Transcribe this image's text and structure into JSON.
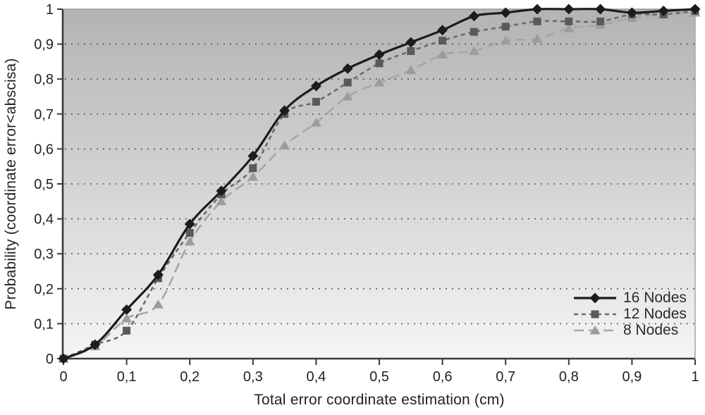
{
  "chart_data": {
    "type": "line",
    "title": "",
    "xlabel": "Total error coordinate estimation (cm)",
    "ylabel": "Probability (coordinate error<abscisa)",
    "xlim": [
      0,
      1
    ],
    "ylim": [
      0,
      1
    ],
    "grid": "horizontal dotted gridlines every 0.1",
    "legend_position": "inside bottom-right",
    "plot_bg_gradient": [
      "#b3b3b3",
      "#f5f5f5"
    ],
    "axis_color": "#3a3a3a",
    "border_color": "#9a9a9a",
    "grid_color": "#4a4a4a",
    "text_color": "#222222",
    "x_ticks": [
      0,
      0.1,
      0.2,
      0.3,
      0.4,
      0.5,
      0.6,
      0.7,
      0.8,
      0.9,
      1
    ],
    "x_tick_labels": [
      "0",
      "0,1",
      "0,2",
      "0,3",
      "0,4",
      "0,5",
      "0,6",
      "0,7",
      "0,8",
      "0,9",
      "1"
    ],
    "y_ticks": [
      1,
      0.9,
      0.8,
      0.7,
      0.6,
      0.5,
      0.4,
      0.3,
      0.2,
      0.1,
      0
    ],
    "y_tick_labels": [
      "1",
      "0,9",
      "0,8",
      "0,7",
      "0,6",
      "0,5",
      "0,4",
      "0,3",
      "0,2",
      "0,1",
      "0"
    ],
    "x": [
      0,
      0.05,
      0.1,
      0.15,
      0.2,
      0.25,
      0.3,
      0.35,
      0.4,
      0.45,
      0.5,
      0.55,
      0.6,
      0.65,
      0.7,
      0.75,
      0.8,
      0.85,
      0.9,
      0.95,
      1.0
    ],
    "series": [
      {
        "name": "16 Nodes",
        "marker": "diamond",
        "line_style": "solid",
        "color": "#1c1c1c",
        "marker_color": "#1c1c1c",
        "values": [
          0,
          0.04,
          0.14,
          0.24,
          0.385,
          0.48,
          0.58,
          0.71,
          0.78,
          0.83,
          0.87,
          0.905,
          0.94,
          0.98,
          0.99,
          1.0,
          1.0,
          1.0,
          0.99,
          0.995,
          1.0
        ]
      },
      {
        "name": "12 Nodes",
        "marker": "square",
        "line_style": "dashed",
        "color": "#6a6a6a",
        "marker_color": "#5a5a5a",
        "values": [
          0,
          0.04,
          0.08,
          0.23,
          0.36,
          0.47,
          0.545,
          0.7,
          0.735,
          0.79,
          0.845,
          0.88,
          0.91,
          0.935,
          0.95,
          0.965,
          0.965,
          0.965,
          0.985,
          0.985,
          0.995
        ]
      },
      {
        "name": "8 Nodes",
        "marker": "triangle",
        "line_style": "long-dash",
        "color": "#a6a6a6",
        "marker_color": "#9c9c9c",
        "values": [
          0,
          0.035,
          0.115,
          0.155,
          0.335,
          0.45,
          0.52,
          0.61,
          0.675,
          0.75,
          0.79,
          0.825,
          0.87,
          0.88,
          0.91,
          0.915,
          0.945,
          0.955,
          0.975,
          0.985,
          0.99
        ]
      }
    ]
  }
}
